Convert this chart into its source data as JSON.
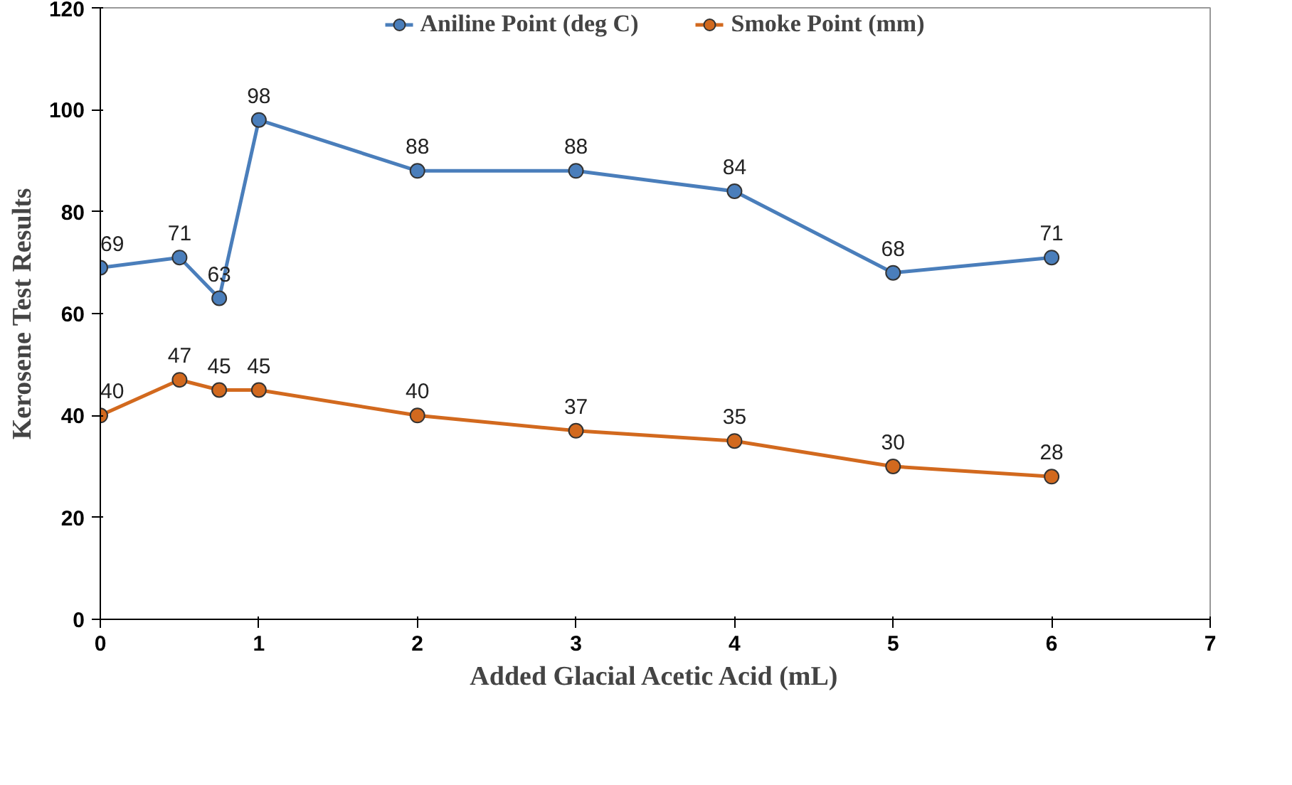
{
  "chart_data": {
    "type": "line",
    "xlabel": "Added Glacial Acetic Acid (mL)",
    "ylabel": "Kerosene Test Results",
    "x": [
      0,
      0.5,
      0.75,
      1,
      2,
      3,
      4,
      5,
      6
    ],
    "series": [
      {
        "name": "Aniline Point (deg C)",
        "color": "#4a7ebb",
        "values": [
          69,
          71,
          63,
          98,
          88,
          88,
          84,
          68,
          71
        ]
      },
      {
        "name": "Smoke Point (mm)",
        "color": "#d2691e",
        "values": [
          40,
          47,
          45,
          45,
          40,
          37,
          35,
          30,
          28
        ]
      }
    ],
    "xlim": [
      0,
      7
    ],
    "xticks": [
      0,
      1,
      2,
      3,
      4,
      5,
      6,
      7
    ],
    "ylim": [
      0,
      120
    ],
    "yticks": [
      0,
      20,
      40,
      60,
      80,
      100,
      120
    ],
    "grid": false,
    "legend": "top",
    "marker": "circle",
    "line_style": "solid",
    "data_labels": true
  }
}
